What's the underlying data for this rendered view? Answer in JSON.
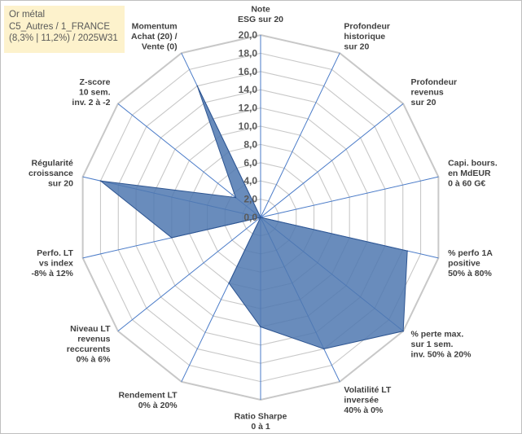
{
  "title_box": {
    "line1": "Or métal",
    "line2": "C5_Autres / 1_FRANCE",
    "line3": "(8,3% | 11,2%) / 2025W31"
  },
  "chart_data": {
    "type": "radar",
    "rmin": 0,
    "rmax": 20,
    "ticks": [
      "0,0",
      "2,0",
      "4,0",
      "6,0",
      "8,0",
      "10,0",
      "12,0",
      "14,0",
      "16,0",
      "18,0",
      "20,0"
    ],
    "axes": [
      {
        "lines": [
          "Note",
          "ESG sur 20"
        ]
      },
      {
        "lines": [
          "Profondeur",
          "historique",
          "sur 20"
        ]
      },
      {
        "lines": [
          "Profondeur",
          "revenus",
          "sur 20"
        ]
      },
      {
        "lines": [
          "Capi. bours.",
          "en MdEUR",
          "0 à 60 G€"
        ]
      },
      {
        "lines": [
          "% perfo 1A",
          "positive",
          "50% à 80%"
        ]
      },
      {
        "lines": [
          "% perte max.",
          "sur 1 sem.",
          "inv. 50% à 20%"
        ]
      },
      {
        "lines": [
          "Volatilité LT",
          "inversée",
          "40% à 0%"
        ]
      },
      {
        "lines": [
          "Ratio Sharpe",
          "0 à 1"
        ]
      },
      {
        "lines": [
          "Rendement LT",
          "0% à 20%"
        ]
      },
      {
        "lines": [
          "Niveau LT",
          "revenus",
          "reccurents",
          "0% à 6%"
        ]
      },
      {
        "lines": [
          "Perfo. LT",
          "vs index",
          "-8% à 12%"
        ]
      },
      {
        "lines": [
          "Régularité",
          "croissance",
          "sur 20"
        ]
      },
      {
        "lines": [
          "Z-score",
          "10 sem.",
          "inv. 2 à -2"
        ]
      },
      {
        "lines": [
          "Momentum",
          "Achat (20) /",
          "Vente (0)"
        ]
      }
    ],
    "series": [
      {
        "values": [
          0,
          0,
          0,
          0,
          16.5,
          20,
          16,
          12,
          8,
          0,
          10,
          18,
          3.5,
          16
        ]
      }
    ],
    "colors": {
      "fill": "#4f78b0",
      "stroke": "#2e5591",
      "spoke": "#4a7bc8",
      "grid": "#c8c8c8"
    }
  }
}
